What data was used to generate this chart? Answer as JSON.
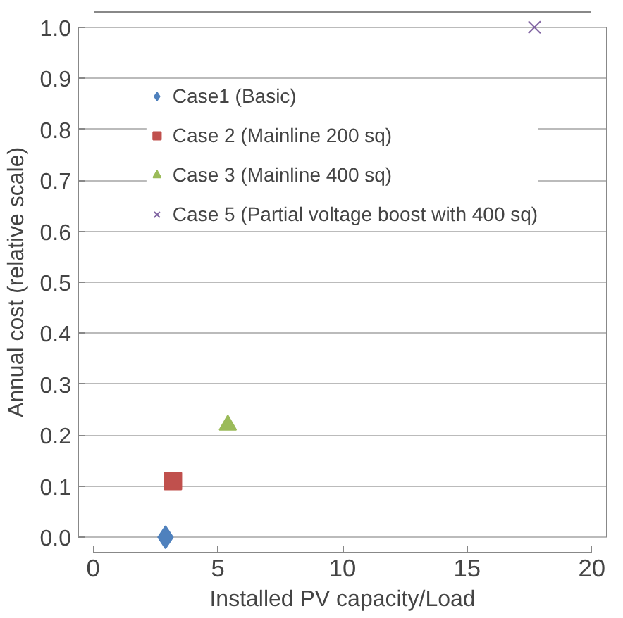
{
  "chart_data": {
    "type": "scatter",
    "xlabel": "Installed PV capacity/Load",
    "ylabel": "Annual cost (relative scale)",
    "series": [
      {
        "name": "Case1 (Basic)",
        "color": "#4f81bd",
        "marker": "diamond",
        "x": [
          2.9
        ],
        "values": [
          0.0
        ]
      },
      {
        "name": "Case 2 (Mainline 200 sq)",
        "color": "#c0504d",
        "marker": "square",
        "x": [
          3.2
        ],
        "values": [
          0.11
        ]
      },
      {
        "name": "Case 3 (Mainline 400 sq)",
        "color": "#9bbb59",
        "marker": "triangle",
        "x": [
          5.4
        ],
        "values": [
          0.22
        ]
      },
      {
        "name": "Case 5 (Partial voltage boost with 400 sq)",
        "color": "#8064a2",
        "marker": "cross",
        "x": [
          17.7
        ],
        "values": [
          1.0
        ]
      }
    ],
    "xlim": [
      0,
      20
    ],
    "xticks": [
      0,
      5,
      10,
      15,
      20
    ],
    "ylim": [
      0,
      1.0
    ],
    "yticks": [
      {
        "value": 0,
        "label": "0.0"
      },
      {
        "value": 0.1,
        "label": "0.1"
      },
      {
        "value": 0.2,
        "label": "0.2"
      },
      {
        "value": 0.3,
        "label": "0.3"
      },
      {
        "value": 0.4,
        "label": "0.4"
      },
      {
        "value": 0.5,
        "label": "0.5"
      },
      {
        "value": 0.6,
        "label": "0.6"
      },
      {
        "value": 0.7,
        "label": "0.7"
      },
      {
        "value": 0.8,
        "label": "0.8"
      },
      {
        "value": 0.9,
        "label": "0.9"
      },
      {
        "value": 1.0,
        "label": "1.0"
      }
    ],
    "grid": "y",
    "legend": "top"
  }
}
